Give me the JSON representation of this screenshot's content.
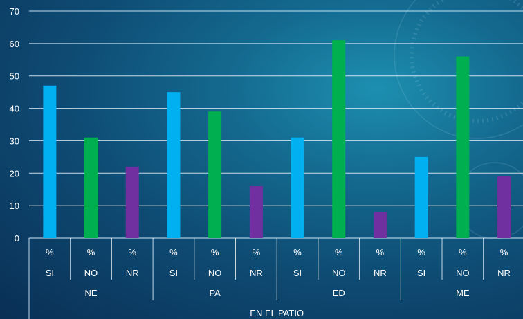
{
  "chart_data": {
    "type": "bar",
    "ylim": [
      0,
      70
    ],
    "y_ticks": [
      0,
      10,
      20,
      30,
      40,
      50,
      60,
      70
    ],
    "grid": true,
    "measure_label": "%",
    "outer_label": "EN EL PATIO",
    "groups": [
      {
        "name": "NE",
        "bars": [
          {
            "category": "SI",
            "value": 47,
            "color": "#00B0F0"
          },
          {
            "category": "NO",
            "value": 31,
            "color": "#00B050"
          },
          {
            "category": "NR",
            "value": 22,
            "color": "#7030A0"
          }
        ]
      },
      {
        "name": "PA",
        "bars": [
          {
            "category": "SI",
            "value": 45,
            "color": "#00B0F0"
          },
          {
            "category": "NO",
            "value": 39,
            "color": "#00B050"
          },
          {
            "category": "NR",
            "value": 16,
            "color": "#7030A0"
          }
        ]
      },
      {
        "name": "ED",
        "bars": [
          {
            "category": "SI",
            "value": 31,
            "color": "#00B0F0"
          },
          {
            "category": "NO",
            "value": 61,
            "color": "#00B050"
          },
          {
            "category": "NR",
            "value": 8,
            "color": "#7030A0"
          }
        ]
      },
      {
        "name": "ME",
        "bars": [
          {
            "category": "SI",
            "value": 25,
            "color": "#00B0F0"
          },
          {
            "category": "NO",
            "value": 56,
            "color": "#00B050"
          },
          {
            "category": "NR",
            "value": 19,
            "color": "#7030A0"
          }
        ]
      }
    ]
  }
}
